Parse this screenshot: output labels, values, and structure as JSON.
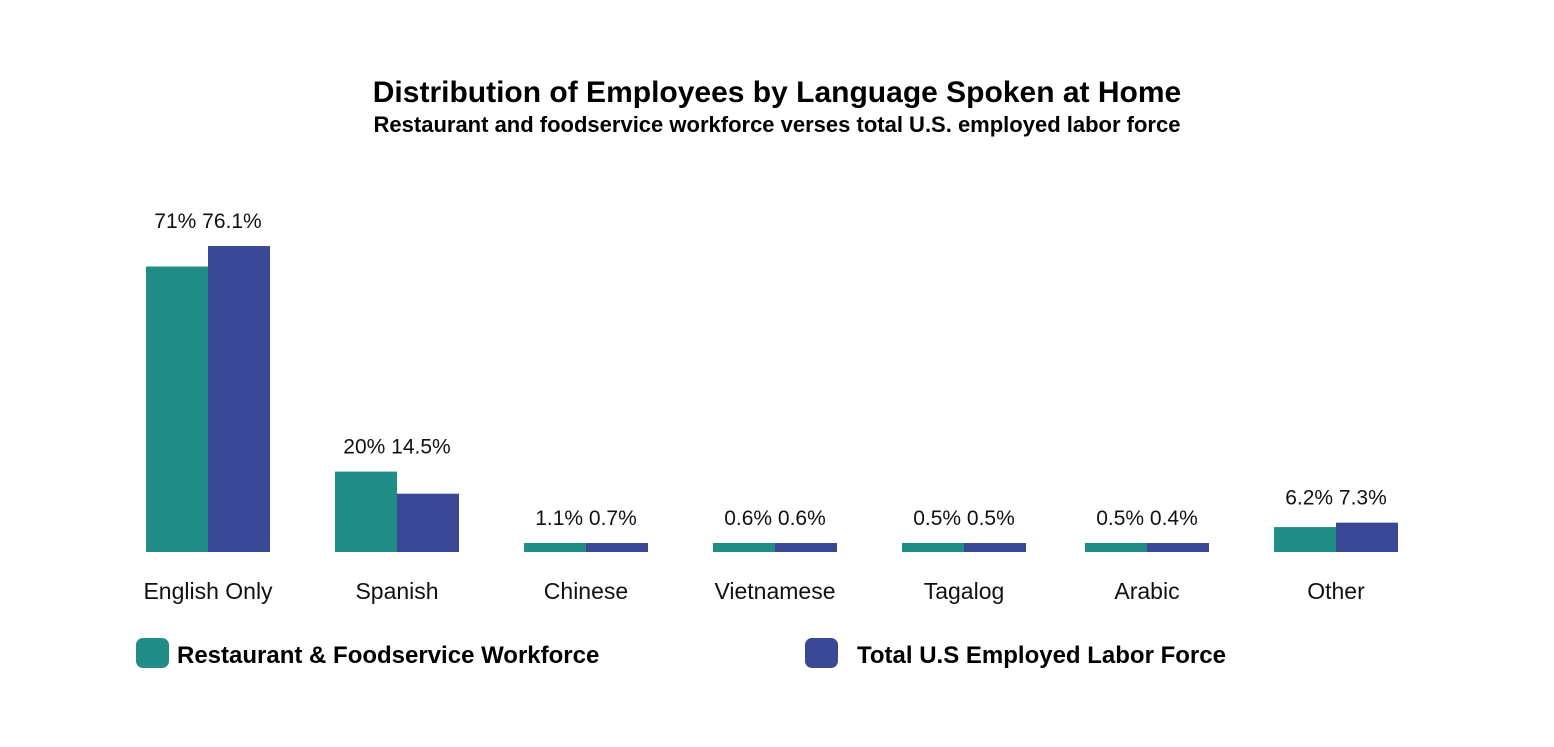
{
  "chart_data": {
    "type": "bar",
    "title": "Distribution of Employees by Language Spoken at Home",
    "subtitle": "Restaurant and foodservice workforce verses total U.S. employed labor force",
    "categories": [
      "English Only",
      "Spanish",
      "Chinese",
      "Vietnamese",
      "Tagalog",
      "Arabic",
      "Other"
    ],
    "series": [
      {
        "name": "Restaurant & Foodservice Workforce",
        "color": "#228C86",
        "values": [
          71,
          20,
          1.1,
          0.6,
          0.5,
          0.5,
          6.2
        ],
        "labels": [
          "71%",
          "20%",
          "1.1%",
          "0.6%",
          "0.5%",
          "0.5%",
          "6.2%"
        ]
      },
      {
        "name": "Total U.S Employed Labor Force",
        "color": "#3B4895",
        "values": [
          76.1,
          14.5,
          0.7,
          0.6,
          0.5,
          0.4,
          7.3
        ],
        "labels": [
          "76.1%",
          "14.5%",
          "0.7%",
          "0.6%",
          "0.5%",
          "0.4%",
          "7.3%"
        ]
      }
    ],
    "xlabel": "",
    "ylabel": "",
    "ylim": [
      0,
      76.1
    ],
    "grid": false,
    "legend_position": "bottom"
  }
}
